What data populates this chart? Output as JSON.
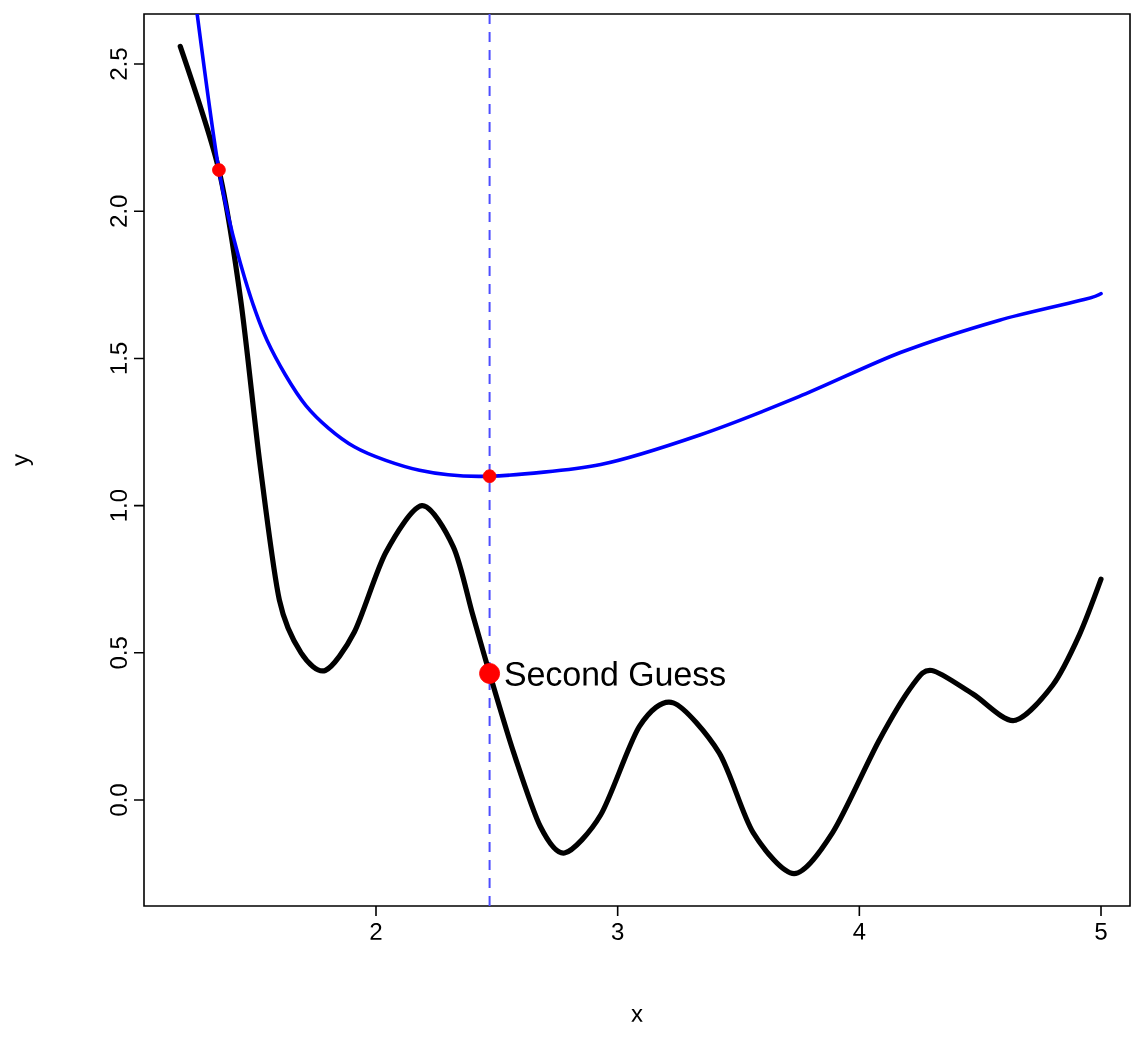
{
  "chart_data": {
    "type": "line",
    "xlabel": "x",
    "ylabel": "y",
    "xlim": [
      1.04,
      5.12
    ],
    "ylim": [
      -0.36,
      2.67
    ],
    "xticks": [
      2,
      3,
      4,
      5
    ],
    "yticks": [
      {
        "value": 0,
        "label": "0.0"
      },
      0.5,
      {
        "value": 1,
        "label": "1.0"
      },
      1.5,
      {
        "value": 2,
        "label": "2.0"
      },
      2.5
    ],
    "series": [
      {
        "color": "#000000",
        "x": [
          1.19,
          1.35,
          1.44,
          1.52,
          1.6,
          1.69,
          1.79,
          1.91,
          2.04,
          2.19,
          2.32,
          2.4,
          2.47,
          2.57,
          2.68,
          2.78,
          2.93,
          3.09,
          3.23,
          3.42,
          3.56,
          3.73,
          3.89,
          4.08,
          4.22,
          4.3,
          4.47,
          4.64,
          4.8,
          4.91,
          5.0
        ],
        "values": [
          2.56,
          2.14,
          1.7,
          1.14,
          0.68,
          0.5,
          0.44,
          0.57,
          0.84,
          1.0,
          0.86,
          0.63,
          0.43,
          0.16,
          -0.09,
          -0.18,
          -0.05,
          0.25,
          0.33,
          0.16,
          -0.11,
          -0.25,
          -0.11,
          0.2,
          0.39,
          0.44,
          0.36,
          0.27,
          0.39,
          0.56,
          0.75
        ]
      },
      {
        "color": "#0000ff",
        "x": [
          1.26,
          1.35,
          1.44,
          1.55,
          1.71,
          1.91,
          2.18,
          2.47,
          2.93,
          3.34,
          3.75,
          4.17,
          4.58,
          4.93,
          5.0
        ],
        "values": [
          2.67,
          2.14,
          1.82,
          1.56,
          1.34,
          1.2,
          1.12,
          1.1,
          1.14,
          1.24,
          1.37,
          1.52,
          1.63,
          1.7,
          1.72
        ]
      },
      {
        "type": "scatter",
        "color": "#ff0000",
        "x": [
          1.35,
          2.47
        ],
        "values": [
          2.14,
          1.1
        ]
      },
      {
        "type": "scatter",
        "color": "#ff0000",
        "x": [
          2.47
        ],
        "values": [
          0.43
        ]
      }
    ],
    "ref_lines": [
      {
        "axis": "x",
        "value": 2.47,
        "color": "#4d4dff",
        "line_style": "dashed"
      }
    ],
    "annotations": [
      {
        "text": "Second Guess",
        "x": 2.47,
        "y": 0.43
      }
    ]
  }
}
